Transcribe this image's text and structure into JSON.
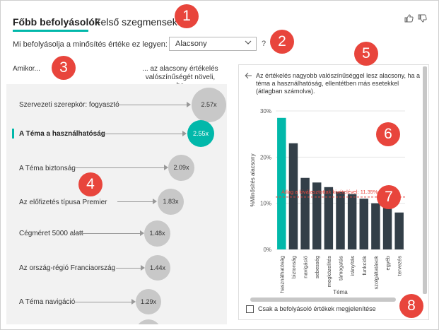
{
  "tabs": [
    {
      "label": "Főbb befolyásolók",
      "active": true
    },
    {
      "label": "Felső szegmensek",
      "active": false
    }
  ],
  "header_icons": [
    "thumbs-up-icon",
    "thumbs-down-icon"
  ],
  "question": {
    "text": "Mi befolyásolja a minősítés értéke ez legyen:",
    "selected": "Alacsony",
    "help": "?"
  },
  "columns": {
    "left_header": "Amikor...",
    "right_header": "... az alacsony értékelés valószínűségét növeli, ha"
  },
  "influencers": [
    {
      "label": "Szervezeti szerepkör: fogyasztó",
      "value": "2.57x",
      "selected": false
    },
    {
      "label": "A Téma a használhatóság",
      "value": "2.55x",
      "selected": true
    },
    {
      "label": "A Téma biztonság",
      "value": "2.09x",
      "selected": false
    },
    {
      "label": "Az előfizetés típusa Premier",
      "value": "1.83x",
      "selected": false
    },
    {
      "label": "Cégméret 5000 alatt",
      "value": "1.48x",
      "selected": false
    },
    {
      "label": "Az ország-régió Franciaország",
      "value": "1.44x",
      "selected": false
    },
    {
      "label": "A Téma navigáció",
      "value": "1.29x",
      "selected": false
    }
  ],
  "detail": {
    "description": "Az értékelés nagyobb valószínűséggel lesz alacsony, ha a téma a használhatóság, ellentétben más esetekkel (átlagban számolva).",
    "checkbox_label": "Csak a befolyásoló értékek megjelenítése"
  },
  "chart_data": {
    "type": "bar",
    "categories": [
      "használhatóság",
      "biztonság",
      "navigáció",
      "sebesség",
      "megközelítés",
      "támogatás",
      "irányítás",
      "funkciók",
      "szolgáltatások",
      "egyéb",
      "tervezés"
    ],
    "values": [
      28.5,
      23,
      15.5,
      14.5,
      13.5,
      12.5,
      12,
      11,
      10,
      9,
      8
    ],
    "highlight_index": 0,
    "ylabel": "%Minősítés alacsony",
    "xlabel": "Téma",
    "ylim": [
      0,
      30
    ],
    "yticks": [
      "0%",
      "10%",
      "20%",
      "30%"
    ],
    "average_line": {
      "label": "Átlag a kiválasztottak kivételével: 11.35%",
      "value": 11.35
    },
    "colors": {
      "highlight": "#01b8aa",
      "bar": "#333f48",
      "average": "#e8453c"
    }
  },
  "callouts": [
    "1",
    "2",
    "3",
    "4",
    "5",
    "6",
    "7",
    "8"
  ],
  "colors": {
    "accent": "#01b8aa",
    "callout": "#e8453c"
  }
}
